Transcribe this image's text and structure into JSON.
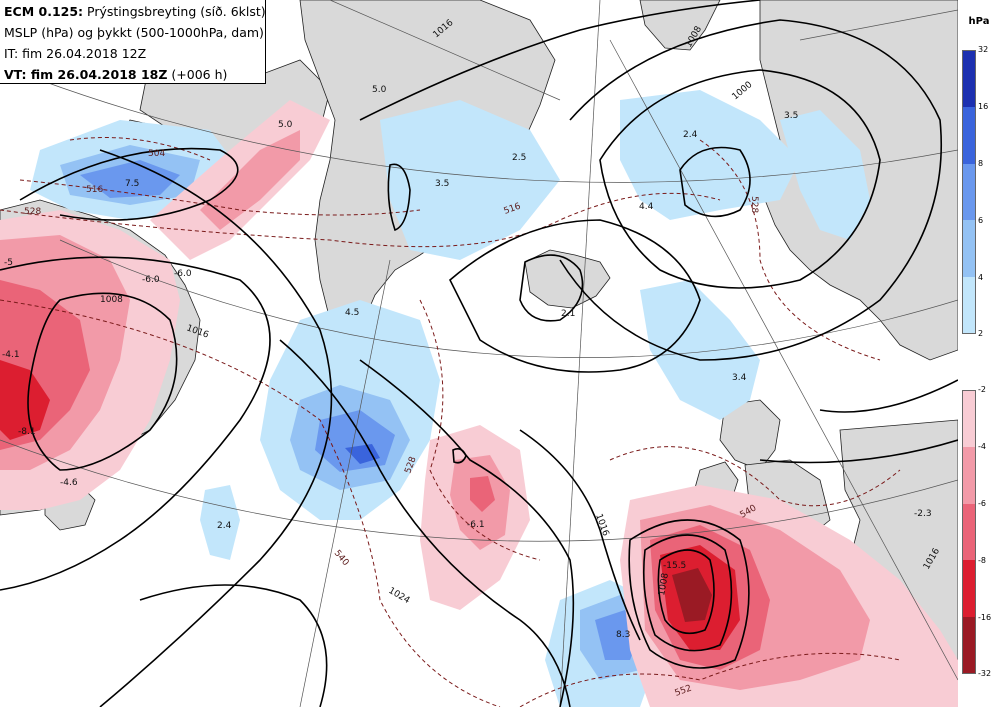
{
  "header": {
    "model": "ECM 0.125:",
    "product": "Prýstingsbreyting (síð. 6klst)",
    "fields": "MSLP (hPa) og þykkt (500-1000hPa, dam)",
    "init": "IT: fim 26.04.2018 12Z",
    "valid": "VT: fim 26.04.2018 18Z",
    "lead": "(+006 h)"
  },
  "legend": {
    "unit": "hPa",
    "rise_ticks": [
      "32",
      "16",
      "8",
      "6",
      "4",
      "2"
    ],
    "fall_ticks": [
      "-2",
      "-4",
      "-6",
      "-8",
      "-16",
      "-32"
    ],
    "rise_colors": [
      "#1c30b0",
      "#3a64dc",
      "#6a98ee",
      "#94c2f4",
      "#c2e6fb"
    ],
    "fall_colors": [
      "#f8ccd4",
      "#f29aa8",
      "#ea6478",
      "#dc1e30",
      "#9a1a24"
    ]
  },
  "map": {
    "colors": {
      "land": "#d9d9d9",
      "isobar": "#000000",
      "thickness": "#7a1a1a"
    },
    "isobar_labels": [
      "1016",
      "1008",
      "1000",
      "1008",
      "1016",
      "1024",
      "1008",
      "1016",
      "1016"
    ],
    "thickness_labels": [
      "504",
      "516",
      "528",
      "516",
      "528",
      "540",
      "552",
      "528",
      "540"
    ],
    "change_labels": [
      "7.5",
      "5.0",
      "5.0",
      "3.5",
      "2.5",
      "2.4",
      "3.5",
      "4.4",
      "2.1",
      "4.5",
      "-6.0",
      "-6.0",
      "-5",
      "-4.1",
      "-8.1",
      "-4.6",
      "2.4",
      "-6.1",
      "8.3",
      "-15.5",
      "-2.3",
      "3.4"
    ]
  }
}
